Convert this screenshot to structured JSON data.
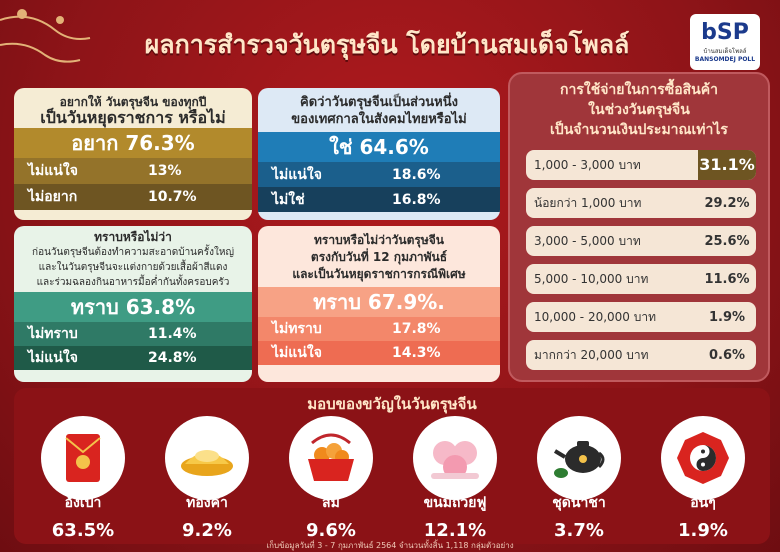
{
  "header": {
    "title": "ผลการสำรวจวันตรุษจีน โดยบ้านสมเด็จโพลล์",
    "logo_mark": "bSP",
    "logo_thai": "บ้านสมเด็จโพลล์",
    "logo_en": "BANSOMDEJ POLL"
  },
  "holiday_card": {
    "question_line1": "อยากให้ วันตรุษจีน ของทุกปี",
    "question_line2": "เป็นวันหยุดราชการ หรือไม่",
    "answers": [
      {
        "label": "อยาก",
        "value": "76.3%"
      },
      {
        "label": "ไม่แน่ใจ",
        "value": "13%"
      },
      {
        "label": "ไม่อยาก",
        "value": "10.7%"
      }
    ]
  },
  "festival_card": {
    "question_line1": "คิดว่าวันตรุษจีนเป็นส่วนหนึ่ง",
    "question_line2": "ของเทศกาลในสังคมไทยหรือไม่",
    "answers": [
      {
        "label": "ใช่",
        "value": "64.6%"
      },
      {
        "label": "ไม่แน่ใจ",
        "value": "18.6%"
      },
      {
        "label": "ไม่ใช่",
        "value": "16.8%"
      }
    ]
  },
  "customs_card": {
    "question_line1": "ทราบหรือไม่ว่า",
    "question_line2": "ก่อนวันตรุษจีนต้องทำความสะอาดบ้านครั้งใหญ่",
    "question_line3": "และในวันตรุษจีนจะแต่งกายด้วยเสื้อผ้าสีแดง",
    "question_line4": "และร่วมฉลองกินอาหารมื้อค่ำกันทั้งครอบครัว",
    "answers": [
      {
        "label": "ทราบ",
        "value": "63.8%"
      },
      {
        "label": "ไม่ทราบ",
        "value": "11.4%"
      },
      {
        "label": "ไม่แน่ใจ",
        "value": "24.8%"
      }
    ]
  },
  "special_card": {
    "question_line1": "ทราบหรือไม่ว่าวันตรุษจีน",
    "question_line2": "ตรงกับวันที่ 12 กุมภาพันธ์",
    "question_line3": "และเป็นวันหยุดราชการกรณีพิเศษ",
    "answers": [
      {
        "label": "ทราบ",
        "value": "67.9%."
      },
      {
        "label": "ไม่ทราบ",
        "value": "17.8%"
      },
      {
        "label": "ไม่แน่ใจ",
        "value": "14.3%"
      }
    ]
  },
  "spending": {
    "title_line1": "การใช้จ่ายในการซื้อสินค้า",
    "title_line2": "ในช่วงวันตรุษจีน",
    "title_line3": "เป็นจำนวนเงินประมาณเท่าไร",
    "rows": [
      {
        "label": "1,000 - 3,000 บาท",
        "value": "31.1%"
      },
      {
        "label": "น้อยกว่า 1,000 บาท",
        "value": "29.2%"
      },
      {
        "label": "3,000 - 5,000 บาท",
        "value": "25.6%"
      },
      {
        "label": "5,000 - 10,000 บาท",
        "value": "11.6%"
      },
      {
        "label": "10,000 - 20,000 บาท",
        "value": "1.9%"
      },
      {
        "label": "มากกว่า 20,000 บาท",
        "value": "0.6%"
      }
    ]
  },
  "gifts": {
    "title": "มอบของขวัญในวันตรุษจีน",
    "items": [
      {
        "label": "อั่งเปา",
        "value": "63.5%",
        "icon": "red-envelope-icon"
      },
      {
        "label": "ทองคำ",
        "value": "9.2%",
        "icon": "gold-ingot-icon"
      },
      {
        "label": "ส้ม",
        "value": "9.6%",
        "icon": "orange-basket-icon"
      },
      {
        "label": "ขนมถ้วยฟู",
        "value": "12.1%",
        "icon": "steamed-cake-icon"
      },
      {
        "label": "ชุดน้ำชา",
        "value": "3.7%",
        "icon": "teapot-icon"
      },
      {
        "label": "อื่นๆ",
        "value": "1.9%",
        "icon": "yin-yang-icon"
      }
    ]
  },
  "footnote": "เก็บข้อมูลวันที่ 3 - 7 กุมภาพันธ์ 2564 จำนวนทั้งสิ้น 1,118 กลุ่มตัวอย่าง",
  "colors": {
    "background": "#8e1418",
    "accent_gold": "#b28a2c",
    "accent_blue": "#1f7db7",
    "accent_green": "#3f9c84",
    "accent_peach": "#f7a285"
  }
}
